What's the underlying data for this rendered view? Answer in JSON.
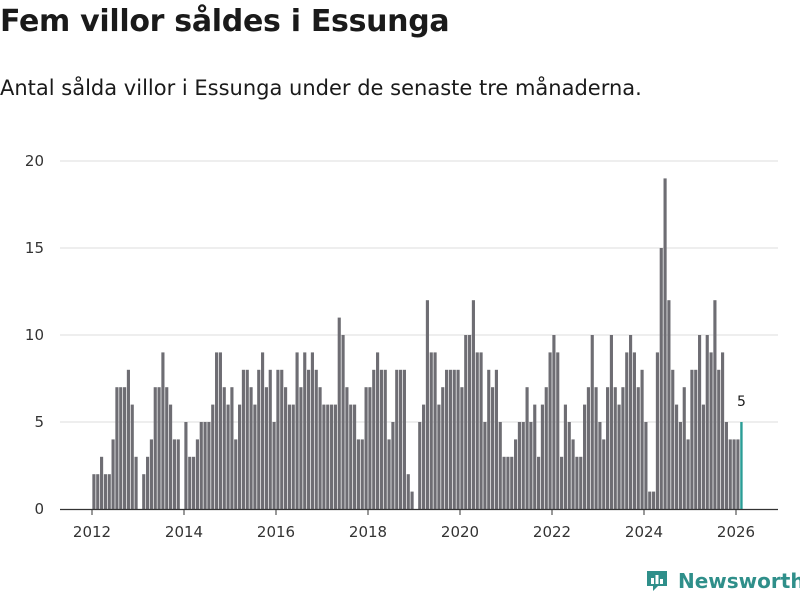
{
  "header": {
    "title": "Fem villor såldes i Essunga",
    "subtitle": "Antal sålda villor i Essunga under de senaste tre månaderna."
  },
  "brand": {
    "name": "Newsworthy",
    "icon": "bar-chart-logo-icon"
  },
  "colors": {
    "bar": "#6e6d73",
    "highlight": "#2a9d96",
    "grid": "#dddddd",
    "axis": "#333333",
    "brand": "#2f8f8a"
  },
  "chart_data": {
    "type": "bar",
    "title": "Fem villor såldes i Essunga",
    "xlabel": "",
    "ylabel": "",
    "ylim": [
      0,
      20
    ],
    "yticks": [
      0,
      5,
      10,
      15,
      20
    ],
    "xticks": [
      2012,
      2014,
      2016,
      2018,
      2020,
      2022,
      2024,
      2026
    ],
    "x_start": 2012.0,
    "x_step_months": 1,
    "grid": true,
    "highlight_label": "5",
    "values": [
      2,
      2,
      3,
      2,
      2,
      4,
      7,
      7,
      7,
      8,
      6,
      3,
      0,
      2,
      3,
      4,
      7,
      7,
      9,
      7,
      6,
      4,
      4,
      0,
      5,
      3,
      3,
      4,
      5,
      5,
      5,
      6,
      9,
      9,
      7,
      6,
      7,
      4,
      6,
      8,
      8,
      7,
      6,
      8,
      9,
      7,
      8,
      5,
      8,
      8,
      7,
      6,
      6,
      9,
      7,
      9,
      8,
      9,
      8,
      7,
      6,
      6,
      6,
      6,
      11,
      10,
      7,
      6,
      6,
      4,
      4,
      7,
      7,
      8,
      9,
      8,
      8,
      4,
      5,
      8,
      8,
      8,
      2,
      1,
      0,
      5,
      6,
      12,
      9,
      9,
      6,
      7,
      8,
      8,
      8,
      8,
      7,
      10,
      10,
      12,
      9,
      9,
      5,
      8,
      7,
      8,
      5,
      3,
      3,
      3,
      4,
      5,
      5,
      7,
      5,
      6,
      3,
      6,
      7,
      9,
      10,
      9,
      3,
      6,
      5,
      4,
      3,
      3,
      6,
      7,
      10,
      7,
      5,
      4,
      7,
      10,
      7,
      6,
      7,
      9,
      10,
      9,
      7,
      8,
      5,
      1,
      1,
      9,
      15,
      19,
      12,
      8,
      6,
      5,
      7,
      4,
      8,
      8,
      10,
      6,
      10,
      9,
      12,
      8,
      9,
      5,
      4,
      4,
      4,
      5
    ]
  }
}
